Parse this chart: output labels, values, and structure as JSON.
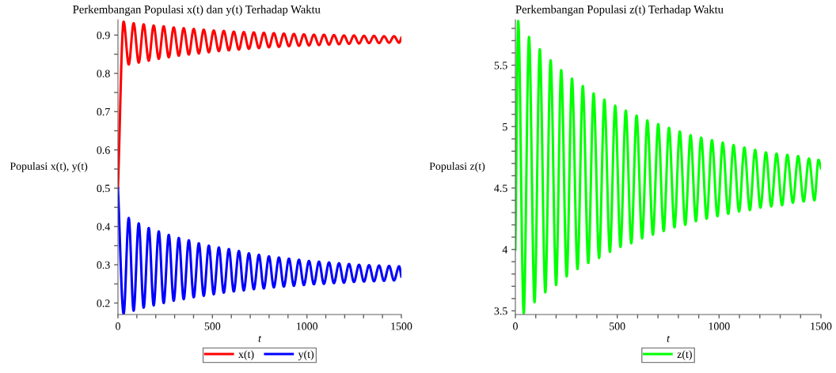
{
  "chart_data": [
    {
      "type": "line",
      "title": "Perkembangan Populasi x(t) dan y(t) Terhadap Waktu",
      "xlabel": "t",
      "ylabel": "Populasi x(t), y(t)",
      "legend": "bottom",
      "grid": false,
      "line_style": "solid",
      "marker": "none",
      "xlim": [
        0,
        1500
      ],
      "ylim": [
        0.17,
        0.94
      ],
      "xticks": [
        0,
        {
          "value": 100,
          "label": null
        },
        {
          "value": 200,
          "label": null
        },
        {
          "value": 300,
          "label": null
        },
        {
          "value": 400,
          "label": null
        },
        500,
        {
          "value": 600,
          "label": null
        },
        {
          "value": 700,
          "label": null
        },
        {
          "value": 800,
          "label": null
        },
        {
          "value": 900,
          "label": null
        },
        1000,
        {
          "value": 1100,
          "label": null
        },
        {
          "value": 1200,
          "label": null
        },
        {
          "value": 1300,
          "label": null
        },
        {
          "value": 1400,
          "label": null
        },
        1500
      ],
      "yticks": [
        0.2,
        {
          "value": 0.25,
          "label": null
        },
        0.3,
        {
          "value": 0.35,
          "label": null
        },
        0.4,
        {
          "value": 0.45,
          "label": null
        },
        0.5,
        {
          "value": 0.55,
          "label": null
        },
        0.6,
        {
          "value": 0.65,
          "label": null
        },
        0.7,
        {
          "value": 0.75,
          "label": null
        },
        0.8,
        {
          "value": 0.85,
          "label": null
        },
        0.9
      ],
      "series": [
        {
          "name": "x(t)",
          "color": "#ff0000",
          "x": [
            0,
            30,
            57,
            83,
            110,
            136,
            163,
            189,
            216,
            242,
            269,
            295,
            322,
            348,
            375,
            401,
            428,
            454,
            481,
            507,
            534,
            560,
            587,
            613,
            640,
            666,
            693,
            719,
            746,
            772,
            799,
            825,
            852,
            878,
            905,
            931,
            958,
            984,
            1011,
            1037,
            1064,
            1090,
            1117,
            1143,
            1170,
            1196,
            1223,
            1249,
            1276,
            1302,
            1329,
            1355,
            1382,
            1408,
            1435,
            1461,
            1488,
            1500
          ],
          "values": [
            0.5,
            0.935,
            0.823,
            0.931,
            0.828,
            0.928,
            0.833,
            0.925,
            0.838,
            0.923,
            0.842,
            0.92,
            0.846,
            0.918,
            0.849,
            0.916,
            0.852,
            0.914,
            0.855,
            0.912,
            0.858,
            0.911,
            0.86,
            0.909,
            0.862,
            0.908,
            0.864,
            0.907,
            0.866,
            0.906,
            0.868,
            0.905,
            0.869,
            0.904,
            0.871,
            0.903,
            0.872,
            0.902,
            0.873,
            0.901,
            0.874,
            0.901,
            0.875,
            0.9,
            0.876,
            0.899,
            0.877,
            0.899,
            0.878,
            0.898,
            0.879,
            0.898,
            0.879,
            0.897,
            0.88,
            0.897,
            0.88,
            0.893
          ]
        },
        {
          "name": "y(t)",
          "color": "#0000ff",
          "x": [
            0,
            30,
            57,
            83,
            110,
            136,
            163,
            189,
            216,
            242,
            269,
            295,
            322,
            348,
            375,
            401,
            428,
            454,
            481,
            507,
            534,
            560,
            587,
            613,
            640,
            666,
            693,
            719,
            746,
            772,
            799,
            825,
            852,
            878,
            905,
            931,
            958,
            984,
            1011,
            1037,
            1064,
            1090,
            1117,
            1143,
            1170,
            1196,
            1223,
            1249,
            1276,
            1302,
            1329,
            1355,
            1382,
            1408,
            1435,
            1461,
            1488,
            1500
          ],
          "values": [
            0.5,
            0.172,
            0.422,
            0.18,
            0.408,
            0.188,
            0.396,
            0.194,
            0.387,
            0.2,
            0.378,
            0.206,
            0.37,
            0.21,
            0.364,
            0.215,
            0.356,
            0.219,
            0.35,
            0.223,
            0.345,
            0.227,
            0.341,
            0.23,
            0.336,
            0.233,
            0.33,
            0.236,
            0.326,
            0.238,
            0.322,
            0.241,
            0.319,
            0.243,
            0.316,
            0.245,
            0.313,
            0.247,
            0.31,
            0.249,
            0.308,
            0.25,
            0.306,
            0.252,
            0.304,
            0.253,
            0.302,
            0.255,
            0.3,
            0.256,
            0.299,
            0.257,
            0.298,
            0.258,
            0.297,
            0.259,
            0.296,
            0.269
          ]
        }
      ]
    },
    {
      "type": "line",
      "title": "Perkembangan Populasi z(t) Terhadap Waktu",
      "xlabel": "t",
      "ylabel": "Populasi z(t)",
      "legend": "bottom",
      "grid": false,
      "line_style": "solid",
      "marker": "none",
      "xlim": [
        0,
        1500
      ],
      "ylim": [
        3.47,
        5.87
      ],
      "xticks": [
        0,
        {
          "value": 100,
          "label": null
        },
        {
          "value": 200,
          "label": null
        },
        {
          "value": 300,
          "label": null
        },
        {
          "value": 400,
          "label": null
        },
        500,
        {
          "value": 600,
          "label": null
        },
        {
          "value": 700,
          "label": null
        },
        {
          "value": 800,
          "label": null
        },
        {
          "value": 900,
          "label": null
        },
        1000,
        {
          "value": 1100,
          "label": null
        },
        {
          "value": 1200,
          "label": null
        },
        {
          "value": 1300,
          "label": null
        },
        {
          "value": 1400,
          "label": null
        },
        1500
      ],
      "yticks": [
        3.5,
        {
          "value": 3.6,
          "label": null
        },
        {
          "value": 3.7,
          "label": null
        },
        {
          "value": 3.8,
          "label": null
        },
        {
          "value": 3.9,
          "label": null
        },
        4,
        {
          "value": 4.1,
          "label": null
        },
        {
          "value": 4.2,
          "label": null
        },
        {
          "value": 4.3,
          "label": null
        },
        {
          "value": 4.4,
          "label": null
        },
        4.5,
        {
          "value": 4.6,
          "label": null
        },
        {
          "value": 4.7,
          "label": null
        },
        {
          "value": 4.8,
          "label": null
        },
        {
          "value": 4.9,
          "label": null
        },
        5,
        {
          "value": 5.1,
          "label": null
        },
        {
          "value": 5.2,
          "label": null
        },
        {
          "value": 5.3,
          "label": null
        },
        {
          "value": 5.4,
          "label": null
        },
        5.5,
        {
          "value": 5.6,
          "label": null
        },
        {
          "value": 5.7,
          "label": null
        },
        {
          "value": 5.8,
          "label": null
        }
      ],
      "series": [
        {
          "name": "z(t)",
          "color": "#00ff00",
          "x": [
            0,
            14,
            41,
            67,
            94,
            120,
            147,
            173,
            200,
            225,
            252,
            278,
            305,
            331,
            358,
            384,
            411,
            437,
            464,
            490,
            516,
            542,
            569,
            595,
            622,
            648,
            675,
            701,
            728,
            754,
            781,
            807,
            834,
            860,
            886,
            912,
            939,
            965,
            992,
            1018,
            1045,
            1071,
            1098,
            1124,
            1151,
            1177,
            1203,
            1230,
            1256,
            1282,
            1309,
            1335,
            1362,
            1388,
            1415,
            1441,
            1468,
            1488,
            1500
          ],
          "values": [
            4.0,
            5.86,
            3.48,
            5.73,
            3.57,
            5.63,
            3.65,
            5.54,
            3.71,
            5.46,
            3.78,
            5.39,
            3.84,
            5.33,
            3.89,
            5.27,
            3.93,
            5.22,
            3.98,
            5.17,
            4.02,
            5.13,
            4.05,
            5.09,
            4.09,
            5.05,
            4.12,
            5.02,
            4.15,
            4.99,
            4.18,
            4.96,
            4.2,
            4.93,
            4.23,
            4.91,
            4.25,
            4.89,
            4.27,
            4.87,
            4.29,
            4.85,
            4.31,
            4.83,
            4.32,
            4.81,
            4.34,
            4.79,
            4.35,
            4.78,
            4.36,
            4.77,
            4.38,
            4.76,
            4.39,
            4.74,
            4.4,
            4.73,
            4.66
          ]
        }
      ]
    }
  ]
}
